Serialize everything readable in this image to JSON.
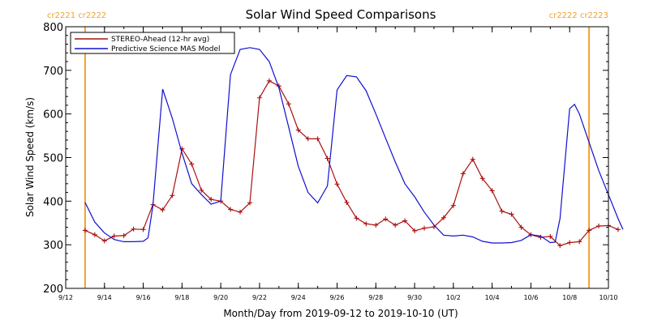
{
  "chart_data": {
    "type": "line",
    "title": "Solar Wind Speed Comparisons",
    "xlabel": "Month/Day from 2019-09-12 to 2019-10-10 (UT)",
    "ylabel": "Solar Wind Speed (km/s)",
    "ylim": [
      200,
      800
    ],
    "xlim": [
      "2019-09-12",
      "2019-10-10"
    ],
    "yticks": [
      200,
      300,
      400,
      500,
      600,
      700,
      800
    ],
    "xticks": [
      {
        "date": "2019-09-12",
        "label": "9/12"
      },
      {
        "date": "2019-09-14",
        "label": "9/14"
      },
      {
        "date": "2019-09-16",
        "label": "9/16"
      },
      {
        "date": "2019-09-18",
        "label": "9/18"
      },
      {
        "date": "2019-09-20",
        "label": "9/20"
      },
      {
        "date": "2019-09-22",
        "label": "9/22"
      },
      {
        "date": "2019-09-24",
        "label": "9/24"
      },
      {
        "date": "2019-09-26",
        "label": "9/26"
      },
      {
        "date": "2019-09-28",
        "label": "9/28"
      },
      {
        "date": "2019-09-30",
        "label": "9/30"
      },
      {
        "date": "2019-10-02",
        "label": "10/2"
      },
      {
        "date": "2019-10-04",
        "label": "10/4"
      },
      {
        "date": "2019-10-06",
        "label": "10/6"
      },
      {
        "date": "2019-10-08",
        "label": "10/8"
      },
      {
        "date": "2019-10-10",
        "label": "10/10"
      }
    ],
    "legend_position": "top-left",
    "grid": false,
    "carrington_markers": [
      {
        "date": "2019-09-13 00:00",
        "labels": [
          "cr2221",
          "cr2222"
        ],
        "side": "left",
        "color": "#f0a030"
      },
      {
        "date": "2019-10-09 00:00",
        "labels": [
          "cr2222",
          "cr2223"
        ],
        "side": "right",
        "color": "#f0a030"
      }
    ],
    "series": [
      {
        "name": "STEREO-Ahead (12-hr avg)",
        "color": "#aa1010",
        "markers": true,
        "points": [
          [
            "2019-09-13 00:00",
            333
          ],
          [
            "2019-09-13 12:00",
            323
          ],
          [
            "2019-09-14 00:00",
            309
          ],
          [
            "2019-09-14 12:00",
            320
          ],
          [
            "2019-09-15 00:00",
            321
          ],
          [
            "2019-09-15 12:00",
            336
          ],
          [
            "2019-09-16 00:00",
            335
          ],
          [
            "2019-09-16 12:00",
            392
          ],
          [
            "2019-09-17 00:00",
            380
          ],
          [
            "2019-09-17 12:00",
            413
          ],
          [
            "2019-09-18 00:00",
            520
          ],
          [
            "2019-09-18 12:00",
            485
          ],
          [
            "2019-09-19 00:00",
            425
          ],
          [
            "2019-09-19 12:00",
            404
          ],
          [
            "2019-09-20 00:00",
            400
          ],
          [
            "2019-09-20 12:00",
            381
          ],
          [
            "2019-09-21 00:00",
            375
          ],
          [
            "2019-09-21 12:00",
            396
          ],
          [
            "2019-09-22 00:00",
            637
          ],
          [
            "2019-09-22 12:00",
            676
          ],
          [
            "2019-09-23 00:00",
            664
          ],
          [
            "2019-09-23 12:00",
            623
          ],
          [
            "2019-09-24 00:00",
            563
          ],
          [
            "2019-09-24 12:00",
            543
          ],
          [
            "2019-09-25 00:00",
            543
          ],
          [
            "2019-09-25 12:00",
            498
          ],
          [
            "2019-09-26 00:00",
            439
          ],
          [
            "2019-09-26 12:00",
            397
          ],
          [
            "2019-09-27 00:00",
            361
          ],
          [
            "2019-09-27 12:00",
            348
          ],
          [
            "2019-09-28 00:00",
            345
          ],
          [
            "2019-09-28 12:00",
            359
          ],
          [
            "2019-09-29 00:00",
            345
          ],
          [
            "2019-09-29 12:00",
            355
          ],
          [
            "2019-09-30 00:00",
            332
          ],
          [
            "2019-09-30 12:00",
            338
          ],
          [
            "2019-10-01 00:00",
            341
          ],
          [
            "2019-10-01 12:00",
            362
          ],
          [
            "2019-10-02 00:00",
            390
          ],
          [
            "2019-10-02 12:00",
            463
          ],
          [
            "2019-10-03 00:00",
            496
          ],
          [
            "2019-10-03 12:00",
            452
          ],
          [
            "2019-10-04 00:00",
            424
          ],
          [
            "2019-10-04 12:00",
            377
          ],
          [
            "2019-10-05 00:00",
            370
          ],
          [
            "2019-10-05 12:00",
            340
          ],
          [
            "2019-10-06 00:00",
            323
          ],
          [
            "2019-10-06 12:00",
            317
          ],
          [
            "2019-10-07 00:00",
            319
          ],
          [
            "2019-10-07 12:00",
            298
          ],
          [
            "2019-10-08 00:00",
            305
          ],
          [
            "2019-10-08 12:00",
            307
          ],
          [
            "2019-10-09 00:00",
            333
          ],
          [
            "2019-10-09 12:00",
            343
          ],
          [
            "2019-10-10 00:00",
            344
          ],
          [
            "2019-10-10 12:00",
            335
          ]
        ]
      },
      {
        "name": "Predictive Science MAS Model",
        "color": "#1010d0",
        "markers": false,
        "points": [
          [
            "2019-09-13 00:00",
            397
          ],
          [
            "2019-09-13 12:00",
            352
          ],
          [
            "2019-09-14 00:00",
            327
          ],
          [
            "2019-09-14 12:00",
            312
          ],
          [
            "2019-09-15 00:00",
            307
          ],
          [
            "2019-09-15 12:00",
            307
          ],
          [
            "2019-09-16 00:00",
            308
          ],
          [
            "2019-09-16 06:00",
            316
          ],
          [
            "2019-09-16 12:00",
            390
          ],
          [
            "2019-09-17 00:00",
            657
          ],
          [
            "2019-09-17 12:00",
            590
          ],
          [
            "2019-09-18 00:00",
            510
          ],
          [
            "2019-09-18 12:00",
            440
          ],
          [
            "2019-09-19 00:00",
            415
          ],
          [
            "2019-09-19 12:00",
            393
          ],
          [
            "2019-09-20 00:00",
            400
          ],
          [
            "2019-09-20 12:00",
            690
          ],
          [
            "2019-09-21 00:00",
            748
          ],
          [
            "2019-09-21 12:00",
            752
          ],
          [
            "2019-09-22 00:00",
            748
          ],
          [
            "2019-09-22 12:00",
            720
          ],
          [
            "2019-09-23 00:00",
            660
          ],
          [
            "2019-09-23 12:00",
            570
          ],
          [
            "2019-09-24 00:00",
            480
          ],
          [
            "2019-09-24 12:00",
            420
          ],
          [
            "2019-09-25 00:00",
            396
          ],
          [
            "2019-09-25 12:00",
            435
          ],
          [
            "2019-09-26 00:00",
            655
          ],
          [
            "2019-09-26 12:00",
            688
          ],
          [
            "2019-09-27 00:00",
            685
          ],
          [
            "2019-09-27 12:00",
            653
          ],
          [
            "2019-09-28 00:00",
            600
          ],
          [
            "2019-09-28 12:00",
            545
          ],
          [
            "2019-09-29 00:00",
            490
          ],
          [
            "2019-09-29 12:00",
            440
          ],
          [
            "2019-09-30 00:00",
            410
          ],
          [
            "2019-09-30 12:00",
            375
          ],
          [
            "2019-10-01 00:00",
            345
          ],
          [
            "2019-10-01 12:00",
            322
          ],
          [
            "2019-10-02 00:00",
            320
          ],
          [
            "2019-10-02 12:00",
            322
          ],
          [
            "2019-10-03 00:00",
            318
          ],
          [
            "2019-10-03 12:00",
            308
          ],
          [
            "2019-10-04 00:00",
            304
          ],
          [
            "2019-10-04 12:00",
            304
          ],
          [
            "2019-10-05 00:00",
            305
          ],
          [
            "2019-10-05 12:00",
            310
          ],
          [
            "2019-10-06 00:00",
            323
          ],
          [
            "2019-10-06 12:00",
            320
          ],
          [
            "2019-10-07 00:00",
            305
          ],
          [
            "2019-10-07 06:00",
            306
          ],
          [
            "2019-10-07 12:00",
            360
          ],
          [
            "2019-10-08 00:00",
            612
          ],
          [
            "2019-10-08 06:00",
            622
          ],
          [
            "2019-10-08 12:00",
            600
          ],
          [
            "2019-10-09 00:00",
            535
          ],
          [
            "2019-10-09 12:00",
            470
          ],
          [
            "2019-10-10 00:00",
            415
          ],
          [
            "2019-10-10 12:00",
            360
          ],
          [
            "2019-10-10 18:00",
            335
          ]
        ]
      }
    ]
  }
}
